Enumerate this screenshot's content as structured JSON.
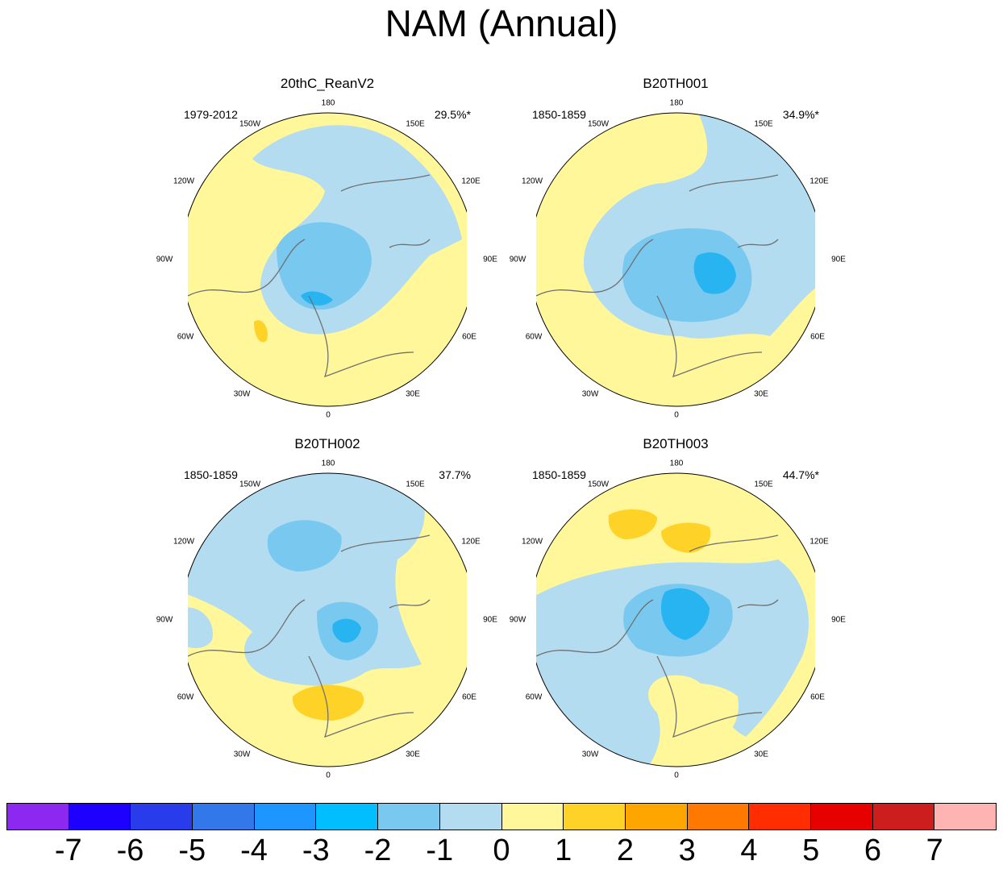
{
  "title": "NAM (Annual)",
  "panels": [
    {
      "name": "20thC_ReanV2",
      "period": "1979-2012",
      "percent": "29.5%*"
    },
    {
      "name": "B20TH001",
      "period": "1850-1859",
      "percent": "34.9%*"
    },
    {
      "name": "B20TH002",
      "period": "1850-1859",
      "percent": "37.7%"
    },
    {
      "name": "B20TH003",
      "period": "1850-1859",
      "percent": "44.7%*"
    }
  ],
  "longitude_labels": {
    "top": "180",
    "bottom": "0",
    "left": [
      "150W",
      "120W",
      "90W",
      "60W",
      "30W"
    ],
    "right": [
      "150E",
      "120E",
      "90E",
      "60E",
      "30E"
    ]
  },
  "colors": {
    "neg1": "#b4dcf0",
    "neg2": "#78c8f0",
    "neg3": "#28b4f0",
    "pos0": "#fff79a",
    "pos1": "#ffd228",
    "pos2": "#ffa500",
    "coast": "#707070"
  },
  "colorbar": {
    "labels": [
      "-7",
      "-6",
      "-5",
      "-4",
      "-3",
      "-2",
      "-1",
      "0",
      "1",
      "2",
      "3",
      "4",
      "5",
      "6",
      "7"
    ],
    "colors": [
      "#8c28f0",
      "#1e00ff",
      "#283ceb",
      "#3278eb",
      "#1e96ff",
      "#00beff",
      "#78c8f0",
      "#b4dcf0",
      "#fff79a",
      "#ffd228",
      "#ffa500",
      "#ff7800",
      "#ff2d00",
      "#e60000",
      "#cd1e1e",
      "#ffb4b4"
    ]
  }
}
